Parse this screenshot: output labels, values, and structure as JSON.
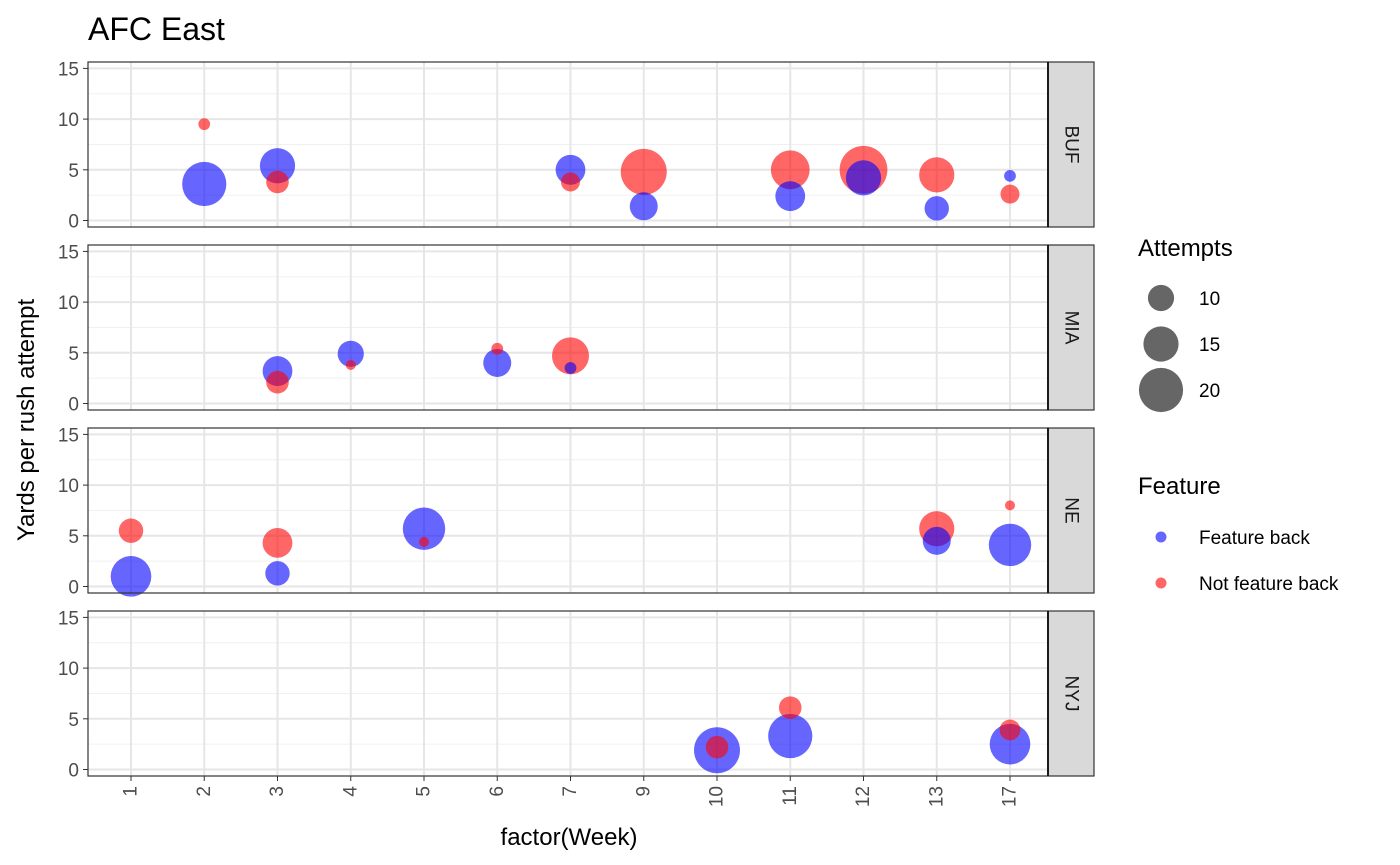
{
  "chart_data": {
    "type": "scatter",
    "title": "AFC East",
    "xlabel": "factor(Week)",
    "ylabel": "Yards per rush attempt",
    "categories": [
      "1",
      "2",
      "3",
      "4",
      "5",
      "6",
      "7",
      "9",
      "10",
      "11",
      "12",
      "13",
      "17"
    ],
    "ylim": [
      0,
      15
    ],
    "yticks": [
      0,
      5,
      10,
      15
    ],
    "facets": [
      "BUF",
      "MIA",
      "NE",
      "NYJ"
    ],
    "legend": {
      "size_title": "Attempts",
      "size_entries": [
        10,
        15,
        20
      ],
      "color_title": "Feature",
      "color_entries": [
        {
          "label": "Feature back",
          "color": "#0000ff"
        },
        {
          "label": "Not feature back",
          "color": "#ff0000"
        }
      ]
    },
    "colors": {
      "Feature back": "#0000ff",
      "Not feature back": "#ff0000"
    },
    "points": [
      {
        "facet": "BUF",
        "week": "2",
        "y": 9.5,
        "attempts": 2,
        "feature": "Not feature back"
      },
      {
        "facet": "BUF",
        "week": "2",
        "y": 3.6,
        "attempts": 20,
        "feature": "Feature back"
      },
      {
        "facet": "BUF",
        "week": "3",
        "y": 5.4,
        "attempts": 15,
        "feature": "Feature back"
      },
      {
        "facet": "BUF",
        "week": "3",
        "y": 3.8,
        "attempts": 8,
        "feature": "Not feature back"
      },
      {
        "facet": "BUF",
        "week": "7",
        "y": 5.0,
        "attempts": 12,
        "feature": "Feature back"
      },
      {
        "facet": "BUF",
        "week": "7",
        "y": 3.8,
        "attempts": 6,
        "feature": "Not feature back"
      },
      {
        "facet": "BUF",
        "week": "9",
        "y": 4.8,
        "attempts": 21,
        "feature": "Not feature back"
      },
      {
        "facet": "BUF",
        "week": "9",
        "y": 1.4,
        "attempts": 11,
        "feature": "Feature back"
      },
      {
        "facet": "BUF",
        "week": "11",
        "y": 5.0,
        "attempts": 17,
        "feature": "Not feature back"
      },
      {
        "facet": "BUF",
        "week": "11",
        "y": 2.4,
        "attempts": 12,
        "feature": "Feature back"
      },
      {
        "facet": "BUF",
        "week": "12",
        "y": 4.2,
        "attempts": 15,
        "feature": "Feature back"
      },
      {
        "facet": "BUF",
        "week": "12",
        "y": 5.0,
        "attempts": 22,
        "feature": "Not feature back"
      },
      {
        "facet": "BUF",
        "week": "13",
        "y": 4.5,
        "attempts": 15,
        "feature": "Not feature back"
      },
      {
        "facet": "BUF",
        "week": "13",
        "y": 1.2,
        "attempts": 9,
        "feature": "Feature back"
      },
      {
        "facet": "BUF",
        "week": "17",
        "y": 4.4,
        "attempts": 2,
        "feature": "Feature back"
      },
      {
        "facet": "BUF",
        "week": "17",
        "y": 2.6,
        "attempts": 6,
        "feature": "Not feature back"
      },
      {
        "facet": "MIA",
        "week": "3",
        "y": 3.2,
        "attempts": 12,
        "feature": "Feature back"
      },
      {
        "facet": "MIA",
        "week": "3",
        "y": 2.1,
        "attempts": 8,
        "feature": "Not feature back"
      },
      {
        "facet": "MIA",
        "week": "4",
        "y": 4.9,
        "attempts": 10,
        "feature": "Feature back"
      },
      {
        "facet": "MIA",
        "week": "4",
        "y": 3.8,
        "attempts": 1,
        "feature": "Not feature back"
      },
      {
        "facet": "MIA",
        "week": "6",
        "y": 5.4,
        "attempts": 2,
        "feature": "Not feature back"
      },
      {
        "facet": "MIA",
        "week": "6",
        "y": 4.0,
        "attempts": 11,
        "feature": "Feature back"
      },
      {
        "facet": "MIA",
        "week": "7",
        "y": 4.7,
        "attempts": 16,
        "feature": "Not feature back"
      },
      {
        "facet": "MIA",
        "week": "7",
        "y": 3.5,
        "attempts": 2,
        "feature": "Feature back"
      },
      {
        "facet": "NE",
        "week": "1",
        "y": 5.5,
        "attempts": 9,
        "feature": "Not feature back"
      },
      {
        "facet": "NE",
        "week": "1",
        "y": 1.0,
        "attempts": 18,
        "feature": "Feature back"
      },
      {
        "facet": "NE",
        "week": "3",
        "y": 4.3,
        "attempts": 12,
        "feature": "Not feature back"
      },
      {
        "facet": "NE",
        "week": "3",
        "y": 1.3,
        "attempts": 9,
        "feature": "Feature back"
      },
      {
        "facet": "NE",
        "week": "5",
        "y": 5.7,
        "attempts": 19,
        "feature": "Feature back"
      },
      {
        "facet": "NE",
        "week": "5",
        "y": 4.4,
        "attempts": 1,
        "feature": "Not feature back"
      },
      {
        "facet": "NE",
        "week": "13",
        "y": 5.7,
        "attempts": 15,
        "feature": "Not feature back"
      },
      {
        "facet": "NE",
        "week": "13",
        "y": 4.5,
        "attempts": 11,
        "feature": "Feature back"
      },
      {
        "facet": "NE",
        "week": "17",
        "y": 8.0,
        "attempts": 1,
        "feature": "Not feature back"
      },
      {
        "facet": "NE",
        "week": "17",
        "y": 4.1,
        "attempts": 19,
        "feature": "Feature back"
      },
      {
        "facet": "NYJ",
        "week": "10",
        "y": 1.9,
        "attempts": 21,
        "feature": "Feature back"
      },
      {
        "facet": "NYJ",
        "week": "10",
        "y": 2.2,
        "attempts": 8,
        "feature": "Not feature back"
      },
      {
        "facet": "NYJ",
        "week": "11",
        "y": 3.3,
        "attempts": 20,
        "feature": "Feature back"
      },
      {
        "facet": "NYJ",
        "week": "11",
        "y": 6.1,
        "attempts": 8,
        "feature": "Not feature back"
      },
      {
        "facet": "NYJ",
        "week": "17",
        "y": 2.5,
        "attempts": 18,
        "feature": "Feature back"
      },
      {
        "facet": "NYJ",
        "week": "17",
        "y": 3.9,
        "attempts": 7,
        "feature": "Not feature back"
      }
    ]
  }
}
